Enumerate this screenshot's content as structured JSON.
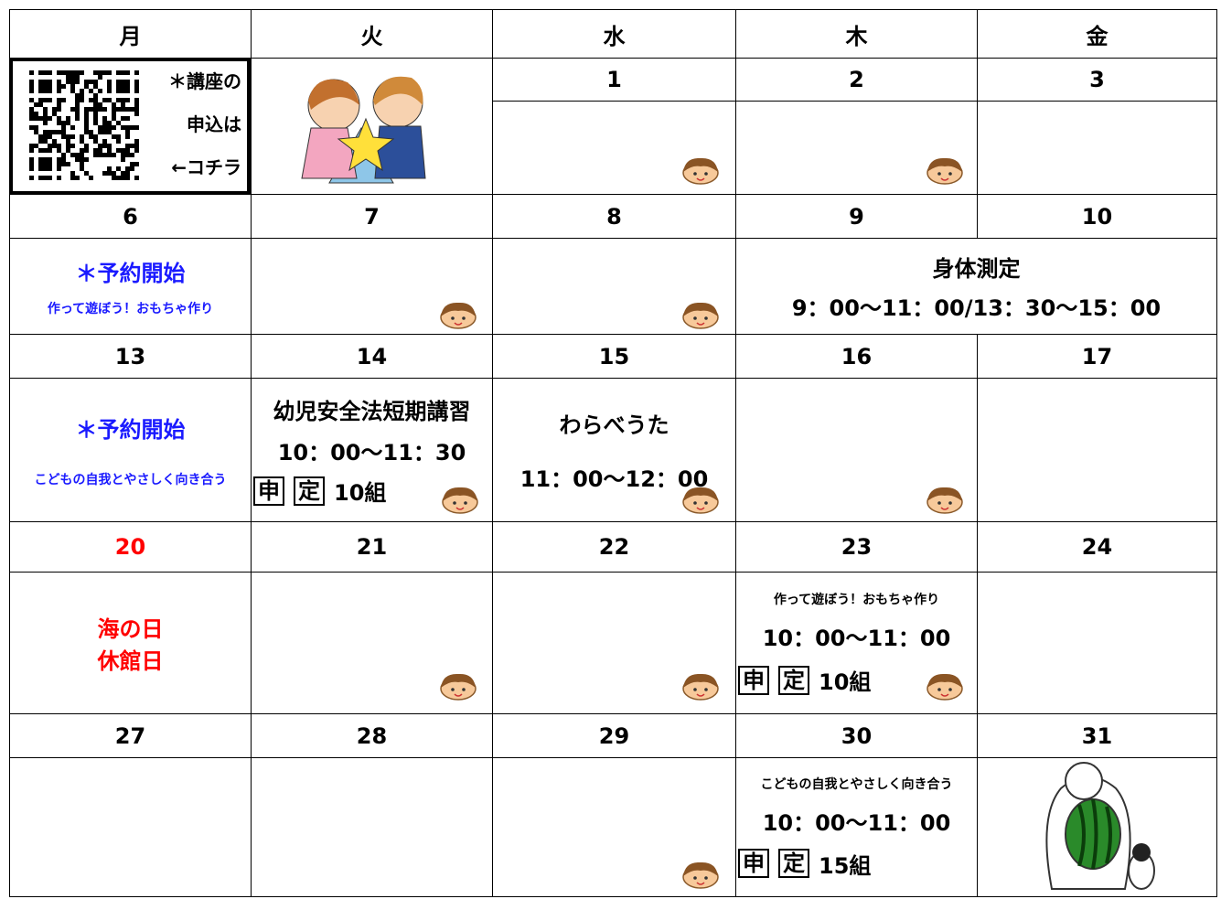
{
  "header": {
    "days": [
      "月",
      "火",
      "水",
      "木",
      "金"
    ]
  },
  "qr_note": {
    "lines": [
      "＊講座の",
      "申込は",
      "←コチラ"
    ]
  },
  "weeks": [
    {
      "dates": [
        null,
        null,
        1,
        2,
        3
      ],
      "cells": [
        null,
        null,
        null,
        null,
        null
      ]
    },
    {
      "dates": [
        6,
        7,
        8,
        9,
        10
      ],
      "cells": [
        {
          "lines": [
            "＊予約開始",
            "作って遊ぼう！おもちゃ作り"
          ]
        },
        null,
        null,
        {
          "lines": [
            "身体測定",
            "9：00～11：00/13：30～15：00"
          ],
          "colspan": 2
        },
        null
      ]
    },
    {
      "dates": [
        13,
        14,
        15,
        16,
        17
      ],
      "cells": [
        {
          "lines": [
            "＊予約開始",
            "こどもの自我とやさしく向き合う"
          ]
        },
        {
          "lines": [
            "幼児安全法短期講習",
            "10：00～11：30"
          ],
          "signup": [
            "申",
            "定",
            "10組"
          ]
        },
        {
          "lines": [
            "わらべうた",
            "11：00～12：00"
          ]
        },
        null,
        null
      ]
    },
    {
      "dates": [
        20,
        21,
        22,
        23,
        24
      ],
      "cells": [
        {
          "lines": [
            "海の日",
            "休館日"
          ]
        },
        null,
        null,
        {
          "lines": [
            "作って遊ぼう！おもちゃ作り",
            "10：00～11：00"
          ],
          "signup": [
            "申",
            "定",
            "10組"
          ]
        },
        null
      ]
    },
    {
      "dates": [
        27,
        28,
        29,
        30,
        31
      ],
      "cells": [
        null,
        null,
        null,
        {
          "lines": [
            "こどもの自我とやさしく向き合う",
            "10：00～11：00"
          ],
          "signup": [
            "申",
            "定",
            "15組"
          ]
        },
        null
      ]
    }
  ]
}
